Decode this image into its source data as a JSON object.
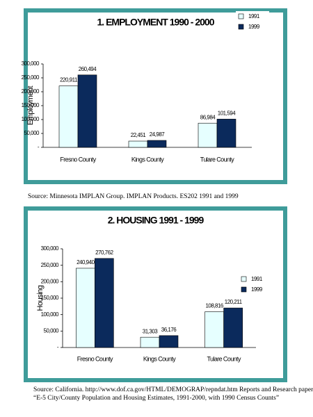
{
  "chart_data": [
    {
      "type": "bar",
      "title": "1. EMPLOYMENT 1990 - 2000",
      "y_label": "Employment",
      "categories": [
        "Fresno County",
        "Kings County",
        "Tulare County"
      ],
      "series": [
        {
          "name": "1991",
          "color": "#e6ffff",
          "values": [
            220911,
            22451,
            86984
          ],
          "value_labels": [
            "220,911",
            "22,451",
            "86,984"
          ]
        },
        {
          "name": "1999",
          "color": "#0b2a5c",
          "values": [
            260494,
            24987,
            101594
          ],
          "value_labels": [
            "260,494",
            "24,987",
            "101,594"
          ]
        }
      ],
      "ylim": [
        0,
        300000
      ],
      "yticks": [
        {
          "value": 0,
          "label": "-"
        },
        {
          "value": 50000,
          "label": "50,000"
        },
        {
          "value": 100000,
          "label": "100,000"
        },
        {
          "value": 150000,
          "label": "150,000"
        },
        {
          "value": 200000,
          "label": "200,000"
        },
        {
          "value": 250000,
          "label": "250,000"
        },
        {
          "value": 300000,
          "label": "300,000"
        }
      ],
      "legend": "top-right",
      "source": [
        "Source: Minnesota IMPLAN Group. IMPLAN Products. ES202 1991 and 1999"
      ]
    },
    {
      "type": "bar",
      "title": "2. HOUSING 1991 - 1999",
      "y_label": "Housing",
      "categories": [
        "Fresno County",
        "Kings County",
        "Tulare County"
      ],
      "series": [
        {
          "name": "1991",
          "color": "#e6ffff",
          "values": [
            240940,
            31303,
            108816
          ],
          "value_labels": [
            "240,940",
            "31,303",
            "108,816"
          ]
        },
        {
          "name": "1999",
          "color": "#0b2a5c",
          "values": [
            270762,
            36176,
            120211
          ],
          "value_labels": [
            "270,762",
            "36,176",
            "120,211"
          ]
        }
      ],
      "ylim": [
        0,
        300000
      ],
      "yticks": [
        {
          "value": 0,
          "label": "-"
        },
        {
          "value": 50000,
          "label": "50,000"
        },
        {
          "value": 100000,
          "label": "100,000"
        },
        {
          "value": 150000,
          "label": "150,000"
        },
        {
          "value": 200000,
          "label": "200,000"
        },
        {
          "value": 250000,
          "label": "250,000"
        },
        {
          "value": 300000,
          "label": "300,000"
        }
      ],
      "legend": "right",
      "source": [
        "Source: California. http://www.dof.ca.gov/HTML/DEMOGRAP/repndat.htm Reports and Research paper.",
        "“E-5 City/County Population and Housing Estimates, 1991-2000, with 1990 Census Counts”"
      ]
    }
  ]
}
